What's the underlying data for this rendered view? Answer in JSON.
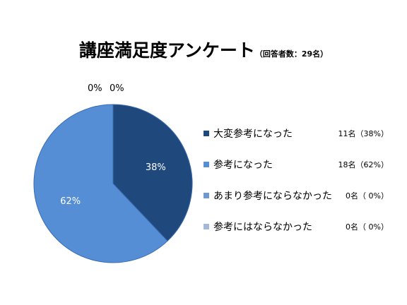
{
  "chart_data": {
    "type": "pie",
    "title": "講座満足度アンケート",
    "subtitle": "（回答者数：29名）",
    "categories": [
      "大変参考になった",
      "参考になった",
      "あまり参考にならなかった",
      "参考にはならなかった"
    ],
    "values": [
      11,
      18,
      0,
      0
    ],
    "percent_labels": [
      "38%",
      "62%",
      "0%",
      "0%"
    ],
    "value_texts": [
      "11名（38%）",
      "18名（62%）",
      "0名（ 0%）",
      "0名（ 0%）"
    ],
    "colors": [
      "#1f497d",
      "#558ed5",
      "#6f98cf",
      "#a6b8d8"
    ],
    "legend_position": "right"
  }
}
